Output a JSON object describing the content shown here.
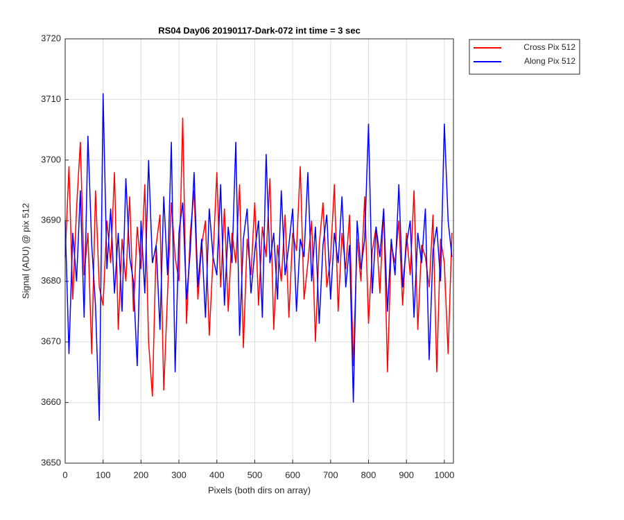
{
  "chart_data": {
    "type": "line",
    "title": "RS04 Day06 20190117-Dark-072 int time = 3 sec",
    "x_label": "Pixels (both dirs on array)",
    "y_label": "Signal (ADU) @ pix 512",
    "x": [
      0,
      10,
      20,
      30,
      40,
      50,
      60,
      70,
      80,
      90,
      100,
      110,
      120,
      130,
      140,
      150,
      160,
      170,
      180,
      190,
      200,
      210,
      220,
      230,
      240,
      250,
      260,
      270,
      280,
      290,
      300,
      310,
      320,
      330,
      340,
      350,
      360,
      370,
      380,
      390,
      400,
      410,
      420,
      430,
      440,
      450,
      460,
      470,
      480,
      490,
      500,
      510,
      520,
      530,
      540,
      550,
      560,
      570,
      580,
      590,
      600,
      610,
      620,
      630,
      640,
      650,
      660,
      670,
      680,
      690,
      700,
      710,
      720,
      730,
      740,
      750,
      760,
      770,
      780,
      790,
      800,
      810,
      820,
      830,
      840,
      850,
      860,
      870,
      880,
      890,
      900,
      910,
      920,
      930,
      940,
      950,
      960,
      970,
      980,
      990,
      1000,
      1010,
      1020
    ],
    "series": [
      {
        "name": "Cross Pix 512",
        "color": "#ff0000",
        "values": [
          3684,
          3699,
          3677,
          3692,
          3703,
          3681,
          3688,
          3668,
          3695,
          3679,
          3676,
          3690,
          3683,
          3698,
          3672,
          3687,
          3680,
          3694,
          3675,
          3689,
          3682,
          3696,
          3670,
          3661,
          3686,
          3691,
          3662,
          3678,
          3693,
          3684,
          3680,
          3707,
          3673,
          3688,
          3695,
          3677,
          3686,
          3690,
          3671,
          3684,
          3698,
          3679,
          3692,
          3675,
          3688,
          3683,
          3696,
          3669,
          3687,
          3681,
          3693,
          3676,
          3689,
          3684,
          3697,
          3672,
          3686,
          3680,
          3691,
          3674,
          3688,
          3685,
          3699,
          3677,
          3683,
          3690,
          3670,
          3686,
          3693,
          3679,
          3684,
          3696,
          3675,
          3688,
          3682,
          3691,
          3666,
          3687,
          3680,
          3694,
          3673,
          3685,
          3689,
          3678,
          3692,
          3665,
          3686,
          3683,
          3690,
          3676,
          3688,
          3681,
          3695,
          3672,
          3686,
          3684,
          3679,
          3691,
          3665,
          3687,
          3683,
          3668,
          3688
        ]
      },
      {
        "name": "Along Pix 512",
        "color": "#0000ff",
        "values": [
          3690,
          3668,
          3688,
          3680,
          3695,
          3674,
          3704,
          3686,
          3676,
          3657,
          3711,
          3682,
          3692,
          3678,
          3688,
          3675,
          3697,
          3684,
          3680,
          3666,
          3690,
          3678,
          3700,
          3683,
          3686,
          3672,
          3694,
          3681,
          3703,
          3665,
          3688,
          3693,
          3677,
          3685,
          3698,
          3679,
          3687,
          3674,
          3692,
          3684,
          3681,
          3696,
          3676,
          3689,
          3683,
          3703,
          3671,
          3687,
          3692,
          3678,
          3685,
          3690,
          3674,
          3701,
          3683,
          3688,
          3677,
          3695,
          3681,
          3686,
          3692,
          3675,
          3687,
          3684,
          3698,
          3680,
          3689,
          3673,
          3686,
          3691,
          3677,
          3688,
          3683,
          3694,
          3679,
          3686,
          3660,
          3690,
          3682,
          3687,
          3706,
          3678,
          3689,
          3684,
          3692,
          3675,
          3687,
          3681,
          3696,
          3679,
          3686,
          3690,
          3674,
          3688,
          3683,
          3692,
          3667,
          3685,
          3689,
          3680,
          3706,
          3690,
          3684
        ]
      }
    ],
    "xlim": [
      0,
      1024
    ],
    "xticks": [
      0,
      100,
      200,
      300,
      400,
      500,
      600,
      700,
      800,
      900,
      1000
    ],
    "ylim": [
      3650,
      3720
    ],
    "yticks": [
      3650,
      3660,
      3670,
      3680,
      3690,
      3700,
      3710,
      3720
    ],
    "grid": true,
    "legend": "outside-top-right"
  }
}
